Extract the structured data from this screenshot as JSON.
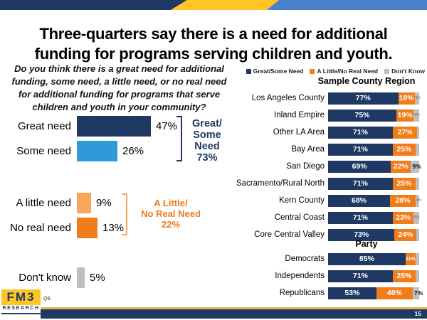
{
  "title": {
    "line1": "Three-quarters say there is a need for additional",
    "line2": "funding for programs serving children and youth."
  },
  "question_lines": [
    "Do you think there is a great need for additional",
    "funding, some need, a little need, or no real need",
    "for additional funding for programs that serve",
    "children and youth in your community?"
  ],
  "colors": {
    "banner_navy": "#1F3864",
    "banner_gold": "#FFC425",
    "banner_blue": "#4A80CC",
    "navy": "#1F3864",
    "blue": "#2E9AD8",
    "light_orange": "#F9A55B",
    "orange": "#F07D1A",
    "orange_text": "#EE7B1D",
    "gray": "#BFBFBF",
    "footer_gold": "#DDB84D"
  },
  "chart_data": [
    {
      "type": "bar",
      "orientation": "horizontal",
      "title": "",
      "xlim": [
        0,
        100
      ],
      "categories": [
        "Great need",
        "Some need",
        "A little need",
        "No real need",
        "Don't know"
      ],
      "values": [
        47,
        26,
        9,
        13,
        5
      ],
      "value_labels": [
        "47%",
        "26%",
        "9%",
        "13%",
        "5%"
      ],
      "bar_color_keys": [
        "navy",
        "blue",
        "light_orange",
        "orange",
        "gray"
      ],
      "annotations": [
        {
          "lines": [
            "Great/",
            "Some",
            "Need",
            "73%"
          ],
          "total": 73,
          "color_key": "navy",
          "rows": [
            0,
            1
          ]
        },
        {
          "lines": [
            "A Little/",
            "No Real Need",
            "22%"
          ],
          "total": 22,
          "color_key": "orange_text",
          "rows": [
            2,
            3
          ]
        }
      ]
    },
    {
      "type": "bar",
      "stacked": true,
      "orientation": "horizontal",
      "xlim": [
        0,
        100
      ],
      "legend": [
        {
          "label": "Great/Some Need",
          "color_key": "navy"
        },
        {
          "label": "A Little/No Real Need",
          "color_key": "orange"
        },
        {
          "label": "Don't Know",
          "color_key": "gray"
        }
      ],
      "sections": [
        {
          "header": "Sample County Region",
          "rows": [
            {
              "label": "Los Angeles County",
              "great": 77,
              "little": 18,
              "dk": 5,
              "great_label": "77%",
              "little_label": "18%",
              "dk_label": "5%"
            },
            {
              "label": "Inland Empire",
              "great": 75,
              "little": 19,
              "dk": 6,
              "great_label": "75%",
              "little_label": "19%",
              "dk_label": "6%"
            },
            {
              "label": "Other LA Area",
              "great": 71,
              "little": 27,
              "dk": 2,
              "great_label": "71%",
              "little_label": "27%",
              "dk_label": ""
            },
            {
              "label": "Bay Area",
              "great": 71,
              "little": 25,
              "dk": 4,
              "great_label": "71%",
              "little_label": "25%",
              "dk_label": ""
            },
            {
              "label": "San Diego",
              "great": 69,
              "little": 22,
              "dk": 9,
              "great_label": "69%",
              "little_label": "22%",
              "dk_label": "9%"
            },
            {
              "label": "Sacramento/Rural North",
              "great": 71,
              "little": 25,
              "dk": 4,
              "great_label": "71%",
              "little_label": "25%",
              "dk_label": ""
            },
            {
              "label": "Kern County",
              "great": 68,
              "little": 28,
              "dk": 4,
              "great_label": "68%",
              "little_label": "28%",
              "dk_label": "4%"
            },
            {
              "label": "Central Coast",
              "great": 71,
              "little": 23,
              "dk": 6,
              "great_label": "71%",
              "little_label": "23%",
              "dk_label": "6%"
            },
            {
              "label": "Core Central Valley",
              "great": 73,
              "little": 24,
              "dk": 3,
              "great_label": "73%",
              "little_label": "24%",
              "dk_label": ""
            }
          ]
        },
        {
          "header": "Party",
          "rows": [
            {
              "label": "Democrats",
              "great": 85,
              "little": 11,
              "dk": 4,
              "great_label": "85%",
              "little_label": "11%",
              "dk_label": ""
            },
            {
              "label": "Independents",
              "great": 71,
              "little": 25,
              "dk": 4,
              "great_label": "71%",
              "little_label": "25%",
              "dk_label": ""
            },
            {
              "label": "Republicans",
              "great": 53,
              "little": 40,
              "dk": 7,
              "great_label": "53%",
              "little_label": "40%",
              "dk_label": "7%"
            }
          ]
        }
      ]
    }
  ],
  "footer": {
    "logo_text": "FM3",
    "logo_subtext": "RESEARCH",
    "footnote": "Q5.",
    "page_number": "15"
  }
}
